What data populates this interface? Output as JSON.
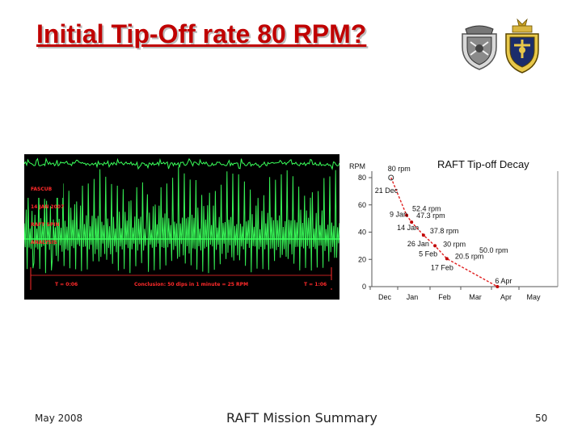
{
  "slide": {
    "title": "Initial Tip-Off rate 80 RPM?",
    "footer_left": "May 2008",
    "footer_center": "RAFT Mission Summary",
    "page_number": "50"
  },
  "logos": [
    {
      "name": "crest-logo-gray",
      "desc": "gray crest emblem"
    },
    {
      "name": "naval-academy-seal",
      "desc": "gold crest emblem"
    }
  ],
  "oscilloscope": {
    "header_lines": [
      "FASCUB",
      "14 JAN 2007",
      "RAFT SPIN",
      "ANALYSIS"
    ],
    "time_start": "T = 0:06",
    "conclusion": "Conclusion: 50 dips in 1 minute = 25 RPM",
    "time_end": "T = 1:06",
    "colors": {
      "background": "#000000",
      "signal": "#39ff5a",
      "marker": "#ff2a2a",
      "text": "#ff2a2a"
    }
  },
  "chart_data": {
    "type": "scatter",
    "title": "RAFT Tip-off Decay",
    "ylabel": "RPM",
    "xlabel": "",
    "categories": [
      "Dec",
      "Jan",
      "Feb",
      "Mar",
      "Apr",
      "May"
    ],
    "yticks": [
      "80",
      "60",
      "40",
      "20",
      "0"
    ],
    "ylim": [
      0,
      80
    ],
    "series": [
      {
        "points": [
          {
            "date": "21 Dec",
            "rpm": 80.0,
            "label": "80 rpm"
          },
          {
            "date": "9 Jan",
            "rpm": 52.4,
            "label": "52.4 rpm"
          },
          {
            "date": "14 Jan",
            "rpm": 47.3,
            "label": "47.3 rpm"
          },
          {
            "date": "26 Jan",
            "rpm": 37.8,
            "label": "37.8 rpm"
          },
          {
            "date": "5 Feb",
            "rpm": 30.0,
            "label": "30 rpm"
          },
          {
            "date": "17 Feb",
            "rpm": 20.5,
            "label": "20.5 rpm"
          },
          {
            "date": "6 Apr",
            "rpm": 0.0,
            "label": ""
          }
        ]
      }
    ],
    "annotations": [
      "50.0 rpm"
    ],
    "trend_color": "#e02020",
    "marker_color": "#c00000"
  }
}
